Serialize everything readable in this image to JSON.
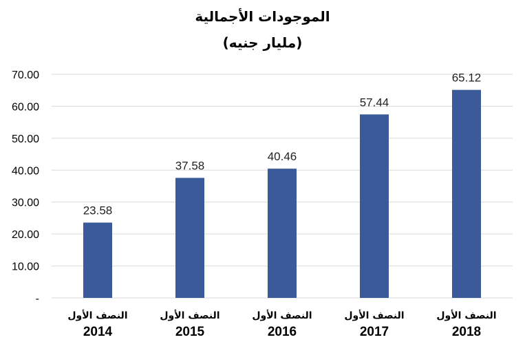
{
  "chart_data": {
    "type": "bar",
    "title": "الموجودات الأجمالية",
    "subtitle": "(مليار جنيه)",
    "categories": [
      {
        "line1": "النصف الأول",
        "line2": "2014"
      },
      {
        "line1": "النصف الأول",
        "line2": "2015"
      },
      {
        "line1": "النصف الأول",
        "line2": "2016"
      },
      {
        "line1": "النصف الأول",
        "line2": "2017"
      },
      {
        "line1": "النصف الأول",
        "line2": "2018"
      }
    ],
    "values": [
      23.58,
      37.58,
      40.46,
      57.44,
      65.12
    ],
    "value_labels": [
      "23.58",
      "37.58",
      "40.46",
      "57.44",
      "65.12"
    ],
    "ylim": [
      0,
      70
    ],
    "yticks": [
      "-",
      "10.00",
      "20.00",
      "30.00",
      "40.00",
      "50.00",
      "60.00",
      "70.00"
    ],
    "grid": true,
    "legend": "none",
    "colors": {
      "bar": "#3a5a9a",
      "grid": "#d9d9d9"
    }
  }
}
